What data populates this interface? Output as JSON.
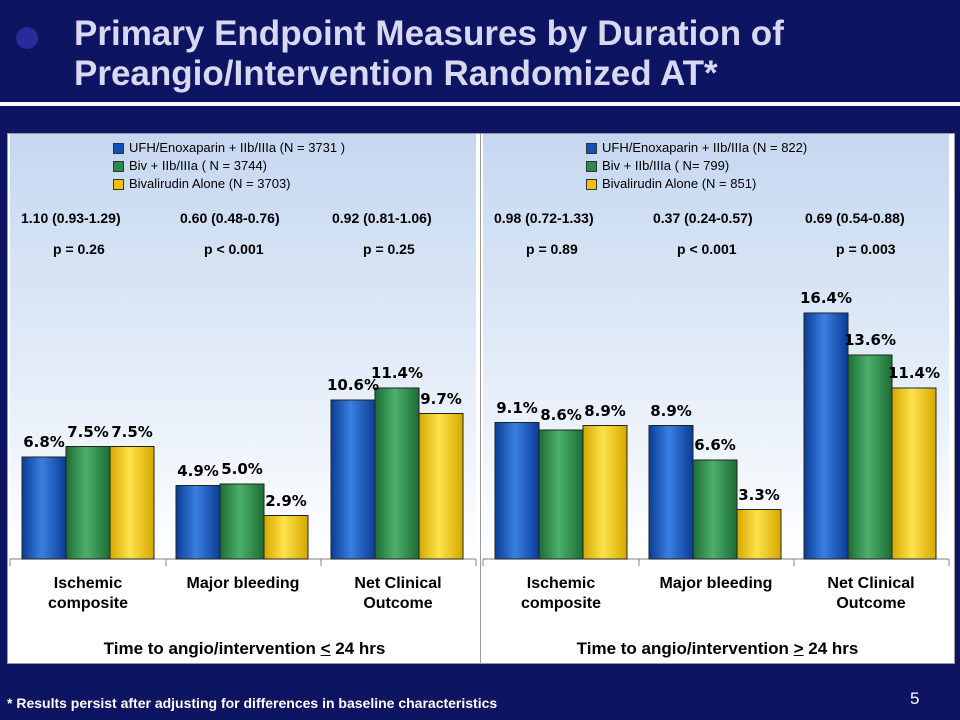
{
  "title": {
    "line1": "Primary Endpoint Measures by Duration of",
    "line2": "Preangio/Intervention Randomized AT*"
  },
  "footnote": "* Results persist after adjusting for differences in baseline characteristics",
  "page_number": "5",
  "colors": {
    "series": [
      "#1450b4",
      "#2a8a4a",
      "#f2c200"
    ],
    "background": "#0d1563"
  },
  "chart_data": [
    {
      "type": "bar",
      "subtitle": {
        "pre": "Time to angio/intervention ",
        "op": "<",
        "post": " 24 hrs"
      },
      "categories": [
        "Ischemic composite",
        "Major bleeding",
        "Net Clinical Outcome"
      ],
      "category_lines": [
        [
          "Ischemic",
          "composite"
        ],
        [
          "Major bleeding"
        ],
        [
          "Net Clinical",
          "Outcome"
        ]
      ],
      "series": [
        {
          "name": "UFH/Enoxaparin + IIb/IIIa (N = 3731 )",
          "values": [
            6.8,
            4.9,
            10.6
          ],
          "labels": [
            "6.8%",
            "4.9%",
            "10.6%"
          ]
        },
        {
          "name": "Biv + IIb/IIIa ( N = 3744)",
          "values": [
            7.5,
            5.0,
            11.4
          ],
          "labels": [
            "7.5%",
            "5.0%",
            "11.4%"
          ]
        },
        {
          "name": "Bivalirudin Alone (N = 3703)",
          "values": [
            7.5,
            2.9,
            9.7
          ],
          "labels": [
            "7.5%",
            "2.9%",
            "9.7%"
          ]
        }
      ],
      "ratios": [
        "1.10 (0.93-1.29)",
        "0.60 (0.48-0.76)",
        "0.92 (0.81-1.06)"
      ],
      "pvalues": [
        "p = 0.26",
        "p < 0.001",
        "p = 0.25"
      ],
      "ylim": [
        0,
        20
      ],
      "legend": "top"
    },
    {
      "type": "bar",
      "subtitle": {
        "pre": "Time to angio/intervention ",
        "op": ">",
        "post": " 24 hrs"
      },
      "categories": [
        "Ischemic composite",
        "Major bleeding",
        "Net Clinical Outcome"
      ],
      "category_lines": [
        [
          "Ischemic",
          "composite"
        ],
        [
          "Major bleeding"
        ],
        [
          "Net Clinical",
          "Outcome"
        ]
      ],
      "series": [
        {
          "name": "UFH/Enoxaparin + IIb/IIIa (N = 822)",
          "values": [
            9.1,
            8.9,
            16.4
          ],
          "labels": [
            "9.1%",
            "8.9%",
            "16.4%"
          ]
        },
        {
          "name": "Biv + IIb/IIIa ( N= 799)",
          "values": [
            8.6,
            6.6,
            13.6
          ],
          "labels": [
            "8.6%",
            "6.6%",
            "13.6%"
          ]
        },
        {
          "name": "Bivalirudin Alone (N = 851)",
          "values": [
            8.9,
            3.3,
            11.4
          ],
          "labels": [
            "8.9%",
            "3.3%",
            "11.4%"
          ]
        }
      ],
      "ratios": [
        "0.98 (0.72-1.33)",
        "0.37 (0.24-0.57)",
        "0.69 (0.54-0.88)"
      ],
      "pvalues": [
        "p = 0.89",
        "p < 0.001",
        "p = 0.003"
      ],
      "ylim": [
        0,
        20
      ],
      "legend": "top"
    }
  ]
}
